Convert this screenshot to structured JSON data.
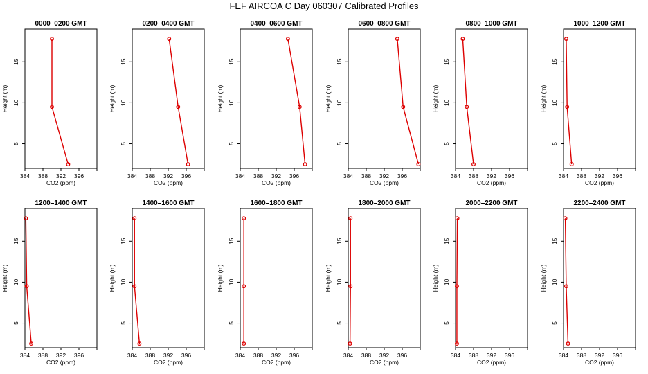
{
  "title": "FEF AIRCOA C  Day 060307  Calibrated Profiles",
  "colors": {
    "profile": "#dd0000",
    "axes": "#000000",
    "background": "#ffffff"
  },
  "chart_data": [
    {
      "type": "line",
      "title": "0000–0200 GMT",
      "xlabel": "CO2 (ppm)",
      "ylabel": "Height (m)",
      "xlim": [
        384,
        400
      ],
      "ylim": [
        2,
        19
      ],
      "x_ticks": [
        384,
        388,
        392,
        396
      ],
      "y_ticks": [
        5,
        10,
        15
      ],
      "points": [
        {
          "x": 393.6,
          "y": 2.5
        },
        {
          "x": 390.0,
          "y": 9.5
        },
        {
          "x": 390.0,
          "y": 17.8
        }
      ]
    },
    {
      "type": "line",
      "title": "0200–0400 GMT",
      "xlabel": "CO2 (ppm)",
      "ylabel": "Height (m)",
      "xlim": [
        384,
        400
      ],
      "ylim": [
        2,
        19
      ],
      "x_ticks": [
        384,
        388,
        392,
        396
      ],
      "y_ticks": [
        5,
        10,
        15
      ],
      "points": [
        {
          "x": 396.4,
          "y": 2.5
        },
        {
          "x": 394.2,
          "y": 9.5
        },
        {
          "x": 392.2,
          "y": 17.8
        }
      ]
    },
    {
      "type": "line",
      "title": "0400–0600 GMT",
      "xlabel": "CO2 (ppm)",
      "ylabel": "Height (m)",
      "xlim": [
        384,
        400
      ],
      "ylim": [
        2,
        19
      ],
      "x_ticks": [
        384,
        388,
        392,
        396
      ],
      "y_ticks": [
        5,
        10,
        15
      ],
      "points": [
        {
          "x": 398.4,
          "y": 2.5
        },
        {
          "x": 397.2,
          "y": 9.5
        },
        {
          "x": 394.6,
          "y": 17.8
        }
      ]
    },
    {
      "type": "line",
      "title": "0600–0800 GMT",
      "xlabel": "CO2 (ppm)",
      "ylabel": "Height (m)",
      "xlim": [
        384,
        400
      ],
      "ylim": [
        2,
        19
      ],
      "x_ticks": [
        384,
        388,
        392,
        396
      ],
      "y_ticks": [
        5,
        10,
        15
      ],
      "points": [
        {
          "x": 399.6,
          "y": 2.5
        },
        {
          "x": 396.2,
          "y": 9.5
        },
        {
          "x": 394.9,
          "y": 17.8
        }
      ]
    },
    {
      "type": "line",
      "title": "0800–1000 GMT",
      "xlabel": "CO2 (ppm)",
      "ylabel": "Height (m)",
      "xlim": [
        384,
        400
      ],
      "ylim": [
        2,
        19
      ],
      "x_ticks": [
        384,
        388,
        392,
        396
      ],
      "y_ticks": [
        5,
        10,
        15
      ],
      "points": [
        {
          "x": 388.0,
          "y": 2.5
        },
        {
          "x": 386.5,
          "y": 9.5
        },
        {
          "x": 385.6,
          "y": 17.8
        }
      ]
    },
    {
      "type": "line",
      "title": "1000–1200 GMT",
      "xlabel": "CO2 (ppm)",
      "ylabel": "Height (m)",
      "xlim": [
        384,
        400
      ],
      "ylim": [
        2,
        19
      ],
      "x_ticks": [
        384,
        388,
        392,
        396
      ],
      "y_ticks": [
        5,
        10,
        15
      ],
      "points": [
        {
          "x": 385.8,
          "y": 2.5
        },
        {
          "x": 384.8,
          "y": 9.5
        },
        {
          "x": 384.6,
          "y": 17.8
        }
      ]
    },
    {
      "type": "line",
      "title": "1200–1400 GMT",
      "xlabel": "CO2 (ppm)",
      "ylabel": "Height (m)",
      "xlim": [
        384,
        400
      ],
      "ylim": [
        2,
        19
      ],
      "x_ticks": [
        384,
        388,
        392,
        396
      ],
      "y_ticks": [
        5,
        10,
        15
      ],
      "points": [
        {
          "x": 385.4,
          "y": 2.5
        },
        {
          "x": 384.4,
          "y": 9.5
        },
        {
          "x": 384.2,
          "y": 17.8
        }
      ]
    },
    {
      "type": "line",
      "title": "1400–1600 GMT",
      "xlabel": "CO2 (ppm)",
      "ylabel": "Height (m)",
      "xlim": [
        384,
        400
      ],
      "ylim": [
        2,
        19
      ],
      "x_ticks": [
        384,
        388,
        392,
        396
      ],
      "y_ticks": [
        5,
        10,
        15
      ],
      "points": [
        {
          "x": 385.6,
          "y": 2.5
        },
        {
          "x": 384.5,
          "y": 9.5
        },
        {
          "x": 384.5,
          "y": 17.8
        }
      ]
    },
    {
      "type": "line",
      "title": "1600–1800 GMT",
      "xlabel": "CO2 (ppm)",
      "ylabel": "Height (m)",
      "xlim": [
        384,
        400
      ],
      "ylim": [
        2,
        19
      ],
      "x_ticks": [
        384,
        388,
        392,
        396
      ],
      "y_ticks": [
        5,
        10,
        15
      ],
      "points": [
        {
          "x": 384.8,
          "y": 2.5
        },
        {
          "x": 384.8,
          "y": 9.5
        },
        {
          "x": 384.8,
          "y": 17.8
        }
      ]
    },
    {
      "type": "line",
      "title": "1800–2000 GMT",
      "xlabel": "CO2 (ppm)",
      "ylabel": "Height (m)",
      "xlim": [
        384,
        400
      ],
      "ylim": [
        2,
        19
      ],
      "x_ticks": [
        384,
        388,
        392,
        396
      ],
      "y_ticks": [
        5,
        10,
        15
      ],
      "points": [
        {
          "x": 384.4,
          "y": 2.5
        },
        {
          "x": 384.5,
          "y": 9.5
        },
        {
          "x": 384.5,
          "y": 17.8
        }
      ]
    },
    {
      "type": "line",
      "title": "2000–2200 GMT",
      "xlabel": "CO2 (ppm)",
      "ylabel": "Height (m)",
      "xlim": [
        384,
        400
      ],
      "ylim": [
        2,
        19
      ],
      "x_ticks": [
        384,
        388,
        392,
        396
      ],
      "y_ticks": [
        5,
        10,
        15
      ],
      "points": [
        {
          "x": 384.3,
          "y": 2.5
        },
        {
          "x": 384.3,
          "y": 9.5
        },
        {
          "x": 384.4,
          "y": 17.8
        }
      ]
    },
    {
      "type": "line",
      "title": "2200–2400 GMT",
      "xlabel": "CO2 (ppm)",
      "ylabel": "Height (m)",
      "xlim": [
        384,
        400
      ],
      "ylim": [
        2,
        19
      ],
      "x_ticks": [
        384,
        388,
        392,
        396
      ],
      "y_ticks": [
        5,
        10,
        15
      ],
      "points": [
        {
          "x": 385.0,
          "y": 2.5
        },
        {
          "x": 384.6,
          "y": 9.5
        },
        {
          "x": 384.4,
          "y": 17.8
        }
      ]
    }
  ]
}
